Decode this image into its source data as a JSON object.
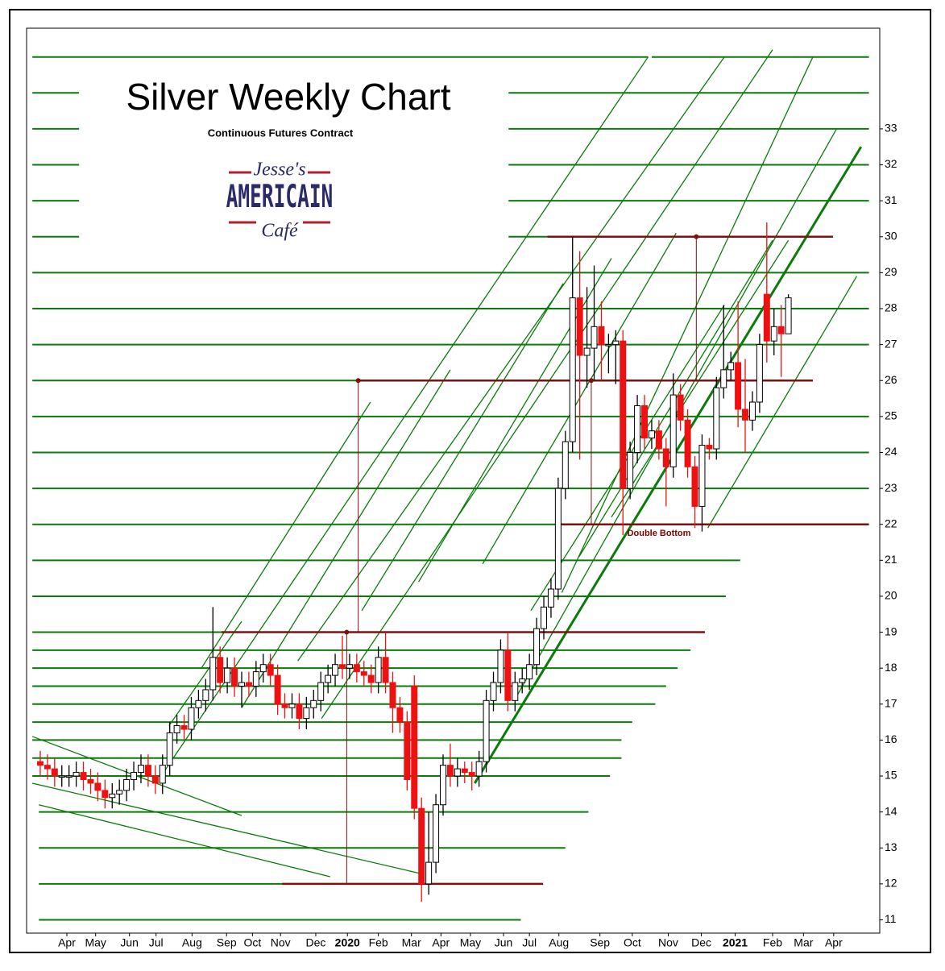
{
  "chart_data": {
    "type": "candlestick",
    "title": "Silver Weekly Chart",
    "subtitle": "Continuous Futures Contract",
    "annotation": "Double Bottom",
    "up_color": "#ffffff",
    "down_color": "#ee1111",
    "level_color": "#0a7a0a",
    "key_color": "#801010",
    "xlim": [
      -1.9,
      116.7
    ],
    "ylim": [
      10.63,
      35.8
    ],
    "yticks": [
      11,
      12,
      13,
      14,
      15,
      16,
      17,
      18,
      19,
      20,
      21,
      22,
      23,
      24,
      25,
      26,
      27,
      28,
      29,
      30,
      31,
      32,
      33
    ],
    "xticks": [
      {
        "value": 3.7,
        "label": "Apr"
      },
      {
        "value": 7.7,
        "label": "May"
      },
      {
        "value": 12.4,
        "label": "Jun"
      },
      {
        "value": 16.1,
        "label": "Jul"
      },
      {
        "value": 21.1,
        "label": "Aug"
      },
      {
        "value": 25.9,
        "label": "Sep"
      },
      {
        "value": 29.5,
        "label": "Oct"
      },
      {
        "value": 33.4,
        "label": "Nov"
      },
      {
        "value": 38.3,
        "label": "Dec"
      },
      {
        "value": 42.7,
        "label": "2020"
      },
      {
        "value": 47.0,
        "label": "Feb"
      },
      {
        "value": 51.6,
        "label": "Mar"
      },
      {
        "value": 55.7,
        "label": "Apr"
      },
      {
        "value": 59.8,
        "label": "May"
      },
      {
        "value": 64.4,
        "label": "Jun"
      },
      {
        "value": 68.0,
        "label": "Jul"
      },
      {
        "value": 72.1,
        "label": "Aug"
      },
      {
        "value": 77.8,
        "label": "Sep"
      },
      {
        "value": 82.3,
        "label": "Oct"
      },
      {
        "value": 87.3,
        "label": "Nov"
      },
      {
        "value": 91.9,
        "label": "Dec"
      },
      {
        "value": 96.6,
        "label": "2021"
      },
      {
        "value": 101.8,
        "label": "Feb"
      },
      {
        "value": 106.1,
        "label": "Mar"
      },
      {
        "value": 110.3,
        "label": "Apr"
      }
    ],
    "x": [
      0,
      1,
      2,
      3,
      4,
      5,
      6,
      7,
      8,
      9,
      10,
      11,
      12,
      13,
      14,
      15,
      16,
      17,
      18,
      19,
      20,
      21,
      22,
      23,
      24,
      25,
      26,
      27,
      28,
      29,
      30,
      31,
      32,
      33,
      34,
      35,
      36,
      37,
      38,
      39,
      40,
      41,
      42,
      43,
      44,
      45,
      46,
      47,
      48,
      49,
      50,
      51,
      52,
      53,
      54,
      55,
      56,
      57,
      58,
      59,
      60,
      61,
      62,
      63,
      64,
      65,
      66,
      67,
      68,
      69,
      70,
      71,
      72,
      73,
      74,
      75,
      76,
      77,
      78,
      79,
      80,
      81,
      82,
      83,
      84,
      85,
      86,
      87,
      88,
      89,
      90,
      91,
      92,
      93,
      94,
      95,
      96,
      97,
      98,
      99,
      100,
      101,
      102,
      103,
      104
    ],
    "open": [
      15.4,
      15.3,
      15.2,
      15.0,
      15.0,
      15.0,
      15.1,
      14.9,
      14.8,
      14.6,
      14.4,
      14.5,
      14.6,
      14.9,
      15.1,
      15.3,
      15.0,
      14.8,
      15.3,
      16.2,
      16.4,
      16.3,
      16.9,
      17.1,
      17.4,
      18.3,
      17.6,
      18.0,
      17.5,
      17.6,
      17.5,
      17.9,
      18.1,
      17.8,
      17.0,
      16.9,
      17.0,
      16.6,
      16.9,
      17.1,
      17.6,
      17.8,
      18.1,
      18.0,
      18.1,
      17.9,
      17.8,
      17.6,
      18.3,
      17.6,
      16.9,
      16.5,
      17.5,
      14.1,
      12.0,
      12.6,
      14.2,
      15.3,
      15.0,
      15.2,
      15.1,
      15.0,
      15.4,
      17.1,
      17.6,
      18.5,
      17.1,
      17.6,
      17.7,
      18.1,
      19.1,
      19.7,
      20.2,
      23.0,
      24.3,
      28.3,
      26.7,
      26.9,
      27.5,
      27.0,
      27.0,
      27.1,
      23.0,
      24.0,
      25.3,
      24.4,
      24.6,
      24.1,
      23.6,
      25.6,
      24.9,
      23.6,
      22.5,
      24.2,
      24.1,
      25.8,
      26.3,
      26.5,
      25.2,
      24.9,
      25.4,
      28.4,
      27.1,
      27.5,
      27.3
    ],
    "high": [
      15.7,
      15.6,
      15.5,
      15.3,
      15.3,
      15.4,
      15.4,
      15.2,
      15.1,
      14.9,
      14.8,
      14.9,
      15.2,
      15.4,
      15.6,
      15.6,
      15.3,
      15.6,
      16.5,
      16.7,
      16.7,
      17.2,
      17.4,
      17.7,
      19.7,
      18.6,
      18.3,
      18.3,
      17.9,
      17.9,
      18.2,
      18.4,
      18.4,
      18.1,
      17.3,
      17.3,
      17.3,
      17.2,
      17.4,
      17.9,
      18.1,
      18.4,
      18.9,
      18.4,
      18.4,
      18.2,
      18.1,
      18.6,
      19.0,
      17.9,
      17.2,
      16.8,
      17.8,
      14.4,
      14.0,
      14.5,
      15.6,
      15.9,
      15.5,
      15.4,
      15.4,
      15.7,
      17.4,
      17.9,
      18.8,
      19.0,
      17.9,
      18.0,
      18.4,
      19.4,
      20.0,
      20.5,
      23.3,
      24.6,
      30.0,
      29.6,
      28.6,
      29.2,
      28.2,
      27.3,
      27.4,
      27.4,
      24.3,
      25.6,
      25.6,
      24.9,
      24.9,
      24.4,
      26.2,
      25.9,
      25.2,
      23.9,
      24.5,
      24.4,
      26.1,
      28.1,
      26.8,
      28.2,
      26.6,
      25.7,
      27.3,
      30.4,
      28.0,
      28.1,
      28.4
    ],
    "low": [
      15.0,
      14.9,
      14.7,
      14.7,
      14.7,
      14.7,
      14.6,
      14.5,
      14.3,
      14.1,
      14.1,
      14.2,
      14.3,
      14.6,
      14.8,
      14.7,
      14.5,
      14.5,
      15.0,
      15.9,
      16.0,
      16.0,
      16.6,
      16.8,
      17.1,
      17.3,
      17.3,
      17.2,
      16.9,
      17.2,
      17.2,
      17.6,
      17.5,
      16.7,
      16.6,
      16.6,
      16.3,
      16.3,
      16.6,
      16.8,
      17.3,
      17.5,
      17.7,
      17.7,
      17.6,
      17.5,
      17.3,
      17.3,
      17.3,
      16.2,
      16.2,
      14.6,
      13.8,
      11.5,
      11.7,
      12.3,
      13.9,
      14.7,
      14.7,
      14.8,
      14.6,
      14.7,
      15.1,
      16.8,
      17.3,
      16.8,
      16.8,
      17.3,
      17.4,
      17.8,
      18.8,
      19.4,
      19.9,
      22.7,
      24.0,
      23.8,
      25.8,
      26.0,
      26.0,
      26.2,
      25.9,
      21.7,
      22.7,
      23.7,
      24.1,
      24.1,
      23.8,
      22.5,
      23.3,
      24.6,
      23.3,
      21.9,
      21.8,
      23.8,
      23.8,
      25.5,
      26.0,
      24.7,
      24.0,
      24.6,
      25.1,
      26.5,
      26.7,
      26.1,
      27.3
    ],
    "close": [
      15.3,
      15.2,
      15.0,
      15.0,
      15.0,
      15.1,
      14.9,
      14.8,
      14.6,
      14.4,
      14.5,
      14.6,
      14.9,
      15.1,
      15.3,
      15.0,
      14.8,
      15.3,
      16.2,
      16.4,
      16.3,
      16.9,
      17.1,
      17.4,
      18.3,
      17.6,
      18.0,
      17.5,
      17.6,
      17.5,
      17.9,
      18.1,
      17.8,
      17.0,
      16.9,
      17.0,
      16.6,
      16.9,
      17.1,
      17.6,
      17.8,
      18.1,
      18.0,
      18.1,
      17.9,
      17.8,
      17.6,
      18.3,
      17.6,
      16.9,
      16.5,
      14.9,
      14.1,
      12.0,
      12.6,
      14.2,
      15.3,
      15.0,
      15.2,
      15.1,
      15.0,
      15.4,
      17.1,
      17.6,
      18.5,
      17.1,
      17.6,
      17.7,
      18.1,
      19.1,
      19.7,
      20.2,
      23.0,
      24.3,
      28.3,
      26.7,
      26.9,
      27.5,
      27.0,
      27.0,
      27.1,
      23.0,
      24.0,
      25.3,
      24.4,
      24.6,
      24.1,
      23.6,
      25.6,
      24.9,
      23.6,
      22.5,
      24.2,
      24.1,
      25.8,
      26.3,
      26.5,
      25.2,
      24.9,
      25.4,
      27.0,
      27.1,
      27.5,
      27.3,
      28.3
    ],
    "level_lines": [
      [
        35,
        -1.1,
        84.5
      ],
      [
        35,
        85.0,
        115.2
      ],
      [
        34,
        -1.1,
        5.4
      ],
      [
        34,
        65.1,
        115.2
      ],
      [
        33,
        -1.1,
        5.4
      ],
      [
        33,
        65.1,
        115.2
      ],
      [
        32,
        -1.1,
        5.4
      ],
      [
        32,
        65.1,
        115.2
      ],
      [
        31,
        -1.1,
        5.4
      ],
      [
        31,
        65.1,
        115.2
      ],
      [
        30,
        -1.1,
        5.4
      ],
      [
        30,
        65.1,
        70.5
      ],
      [
        29,
        -1.1,
        115.2
      ],
      [
        28,
        -1.1,
        115.2
      ],
      [
        27,
        -1.1,
        115.2
      ],
      [
        26,
        -1.1,
        44.2
      ],
      [
        25,
        -1.1,
        115.2
      ],
      [
        24,
        -1.1,
        115.2
      ],
      [
        23,
        -1.1,
        115.2
      ],
      [
        22,
        -1.1,
        72.4
      ],
      [
        21,
        -1.1,
        97.3
      ],
      [
        20,
        -1.1,
        95.3
      ],
      [
        19,
        -1.1,
        25.2
      ],
      [
        18.5,
        -1.1,
        90.4
      ],
      [
        18,
        -1.1,
        88.6
      ],
      [
        17.5,
        -1.1,
        87.0
      ],
      [
        17,
        -1.1,
        85.5
      ],
      [
        16.5,
        -1.1,
        82.3
      ],
      [
        16,
        -1.1,
        80.8
      ],
      [
        15.5,
        -1.1,
        80.8
      ],
      [
        15,
        -1.1,
        79.2
      ],
      [
        14,
        -0.2,
        76.2
      ],
      [
        13,
        -0.2,
        73.0
      ],
      [
        12,
        -0.2,
        33.6
      ],
      [
        11,
        -0.2,
        66.8
      ]
    ],
    "channel_lines": [
      [
        16.8,
        15.0,
        84.5,
        35.0
      ],
      [
        35.8,
        18.2,
        95.1,
        35.0
      ],
      [
        39.1,
        16.6,
        101.8,
        35.2
      ],
      [
        60.4,
        14.8,
        114.1,
        32.5
      ],
      [
        65.9,
        17.1,
        110.7,
        33.0
      ],
      [
        72.5,
        20.1,
        107.4,
        35.0
      ],
      [
        92.8,
        21.9,
        113.5,
        28.9
      ],
      [
        28.0,
        16.9,
        57.0,
        26.3
      ],
      [
        44.7,
        19.6,
        72.7,
        28.7
      ],
      [
        52.6,
        20.4,
        79.4,
        29.4
      ],
      [
        61.5,
        20.9,
        88.4,
        30.1
      ],
      [
        68.2,
        19.6,
        95.1,
        28.1
      ],
      [
        74.9,
        21.1,
        101.8,
        29.9
      ],
      [
        79.4,
        22.2,
        104.0,
        29.9
      ],
      [
        22.4,
        18.0,
        45.9,
        25.4
      ],
      [
        17.9,
        16.4,
        28.0,
        19.3
      ],
      [
        -1.1,
        16.1,
        28.0,
        13.9
      ],
      [
        -1.1,
        14.8,
        52.6,
        12.3
      ],
      [
        -0.2,
        14.2,
        40.3,
        12.2
      ]
    ],
    "key_levels": [
      [
        30,
        70.5,
        110.2
      ],
      [
        26,
        44.2,
        107.4
      ],
      [
        22,
        72.4,
        115.2
      ],
      [
        19,
        25.2,
        92.4
      ],
      [
        12,
        33.6,
        69.9
      ]
    ],
    "key_verticals": [
      [
        44.2,
        26,
        19
      ],
      [
        42.6,
        19,
        12
      ],
      [
        76.6,
        26,
        22
      ],
      [
        91.2,
        30,
        26
      ]
    ]
  },
  "logo": {
    "top": "Jesse's",
    "middle": "AMERICAIN",
    "bottom": "Café"
  }
}
